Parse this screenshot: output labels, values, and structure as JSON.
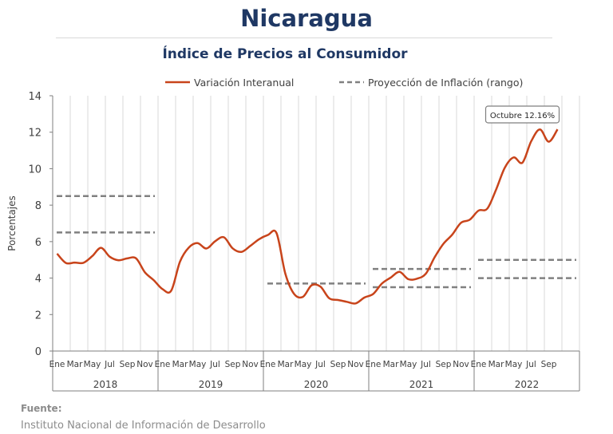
{
  "title": "Nicaragua",
  "subtitle": "Índice de Precios al Consumidor",
  "source": {
    "label": "Fuente:",
    "text": "Instituto Nacional de Información de  Desarrollo"
  },
  "colors": {
    "series": "#c8441b",
    "projection": "#808080",
    "title": "#1f3864",
    "grid": "#d9d9d9"
  },
  "chart_data": {
    "type": "line",
    "ylabel": "Porcentajes",
    "ylim": [
      0,
      14
    ],
    "yticks": [
      0,
      2,
      4,
      6,
      8,
      10,
      12,
      14
    ],
    "grid": "vertical",
    "legend_position": "top",
    "month_labels": [
      "Ene",
      "Mar",
      "May",
      "Jul",
      "Sep",
      "Nov"
    ],
    "years": [
      "2018",
      "2019",
      "2020",
      "2021",
      "2022"
    ],
    "series": [
      {
        "name": "Variación Interanual",
        "style": "solid",
        "values": [
          5.34,
          4.83,
          4.85,
          4.84,
          5.2,
          5.66,
          5.17,
          4.98,
          5.08,
          5.08,
          4.32,
          3.89,
          3.4,
          3.31,
          4.9,
          5.67,
          5.92,
          5.62,
          6.02,
          6.24,
          5.63,
          5.44,
          5.76,
          6.13,
          6.36,
          6.46,
          4.24,
          3.13,
          2.97,
          3.61,
          3.53,
          2.89,
          2.8,
          2.7,
          2.61,
          2.93,
          3.13,
          3.7,
          4.03,
          4.34,
          3.94,
          3.97,
          4.24,
          5.14,
          5.88,
          6.38,
          7.03,
          7.2,
          7.7,
          7.81,
          8.85,
          10.06,
          10.62,
          10.33,
          11.5,
          12.15,
          11.48,
          12.16
        ]
      },
      {
        "name": "Proyección de Inflación (rango)",
        "style": "dashed",
        "ranges": [
          {
            "year": "2018",
            "low": 6.5,
            "high": 8.5
          },
          {
            "year": "2020",
            "low": 3.7,
            "high": 3.7
          },
          {
            "year": "2021",
            "low": 3.5,
            "high": 4.5
          },
          {
            "year": "2022",
            "low": 4.0,
            "high": 5.0
          }
        ]
      }
    ],
    "annotation": {
      "text": "Octubre 12.16%",
      "year": "2022",
      "month": "Oct",
      "value": 12.16
    }
  }
}
